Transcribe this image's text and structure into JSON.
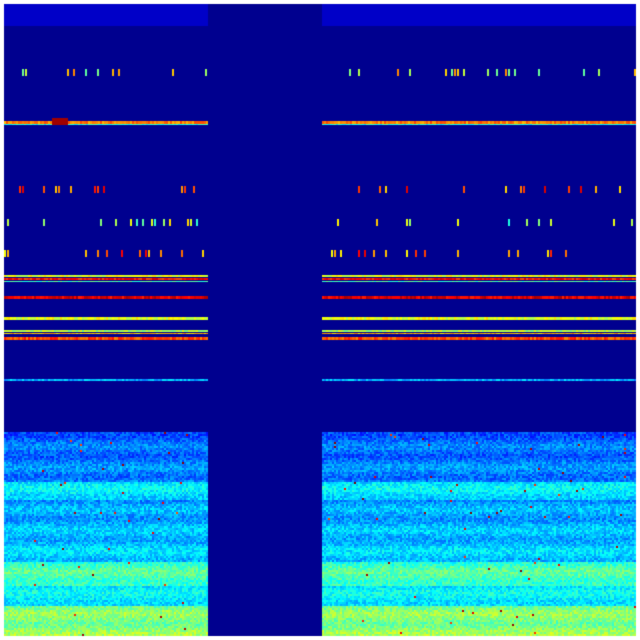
{
  "colormap": {
    "name": "jet",
    "background": "#00008f",
    "low": "#0000c8",
    "mid_low": "#0040ff",
    "mid": "#00c0ff",
    "mid_high": "#80ff80",
    "high": "#ffff00",
    "very_high": "#ff6000",
    "max": "#a00000"
  }
}
